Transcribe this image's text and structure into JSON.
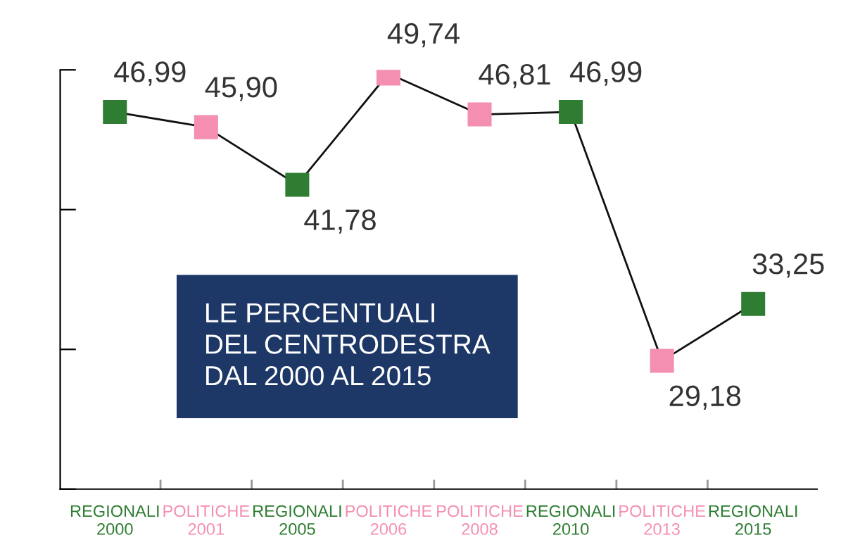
{
  "chart_data": {
    "type": "line",
    "title": "LE PERCENTUALI\nDEL CENTRODESTRA\nDAL 2000 AL 2015",
    "categories": [
      "REGIONALI\n2000",
      "POLITICHE\n2001",
      "REGIONALI\n2005",
      "POLITICHE\n2006",
      "POLITICHE\n2008",
      "REGIONALI\n2010",
      "POLITICHE\n2013",
      "REGIONALI\n2015"
    ],
    "series": [
      {
        "color": "#111111",
        "values": [
          46.99,
          45.9,
          41.78,
          49.74,
          46.81,
          46.99,
          29.18,
          33.25
        ],
        "colors": [
          "#2e7d32",
          "#f48fb1",
          "#2e7d32",
          "#f48fb1",
          "#f48fb1",
          "#2e7d32",
          "#f48fb1",
          "#2e7d32"
        ],
        "value_labels": [
          "46,99",
          "45,90",
          "41,78",
          "49,74",
          "46,81",
          "46,99",
          "29,18",
          "33,25"
        ]
      }
    ],
    "ylim": [
      20,
      50
    ],
    "yticks": [
      {
        "value": 20,
        "label": null
      },
      {
        "value": 30,
        "label": null
      },
      {
        "value": 40,
        "label": null
      },
      {
        "value": 50,
        "label": null
      }
    ],
    "tick_labels": "x",
    "marker": "square",
    "line_style": "solid",
    "grid": false,
    "legend": false
  }
}
